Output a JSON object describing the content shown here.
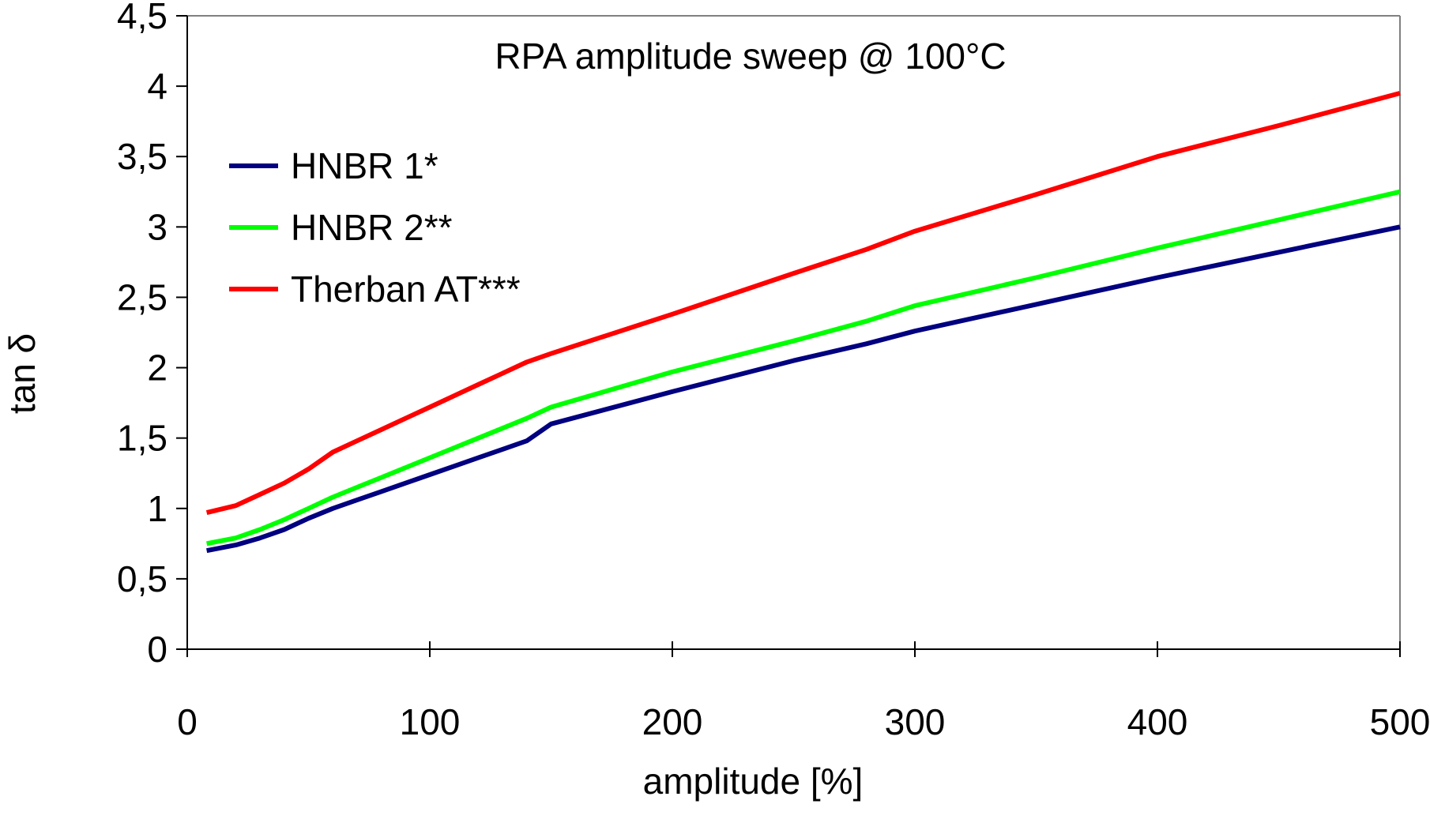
{
  "chart_data": {
    "type": "line",
    "title": "RPA amplitude sweep @ 100°C",
    "xlabel": "amplitude [%]",
    "ylabel": "tan δ",
    "xlim": [
      0,
      500
    ],
    "ylim": [
      0,
      4.5
    ],
    "x_ticks": [
      0,
      100,
      200,
      300,
      400,
      500
    ],
    "x_tick_labels": [
      "0",
      "100",
      "200",
      "300",
      "400",
      "500"
    ],
    "y_ticks": [
      0,
      0.5,
      1,
      1.5,
      2,
      2.5,
      3,
      3.5,
      4,
      4.5
    ],
    "y_tick_labels": [
      "0",
      "0,5",
      "1",
      "1,5",
      "2",
      "2,5",
      "3",
      "3,5",
      "4",
      "4,5"
    ],
    "grid": false,
    "legend_position": "top-left",
    "series": [
      {
        "name": "HNBR 1*",
        "color": "#000080",
        "x": [
          8,
          20,
          30,
          40,
          50,
          60,
          70,
          80,
          90,
          100,
          110,
          120,
          130,
          140,
          150,
          200,
          250,
          280,
          300,
          350,
          400,
          450,
          500
        ],
        "values": [
          0.7,
          0.74,
          0.79,
          0.85,
          0.93,
          1.0,
          1.06,
          1.12,
          1.18,
          1.24,
          1.3,
          1.36,
          1.42,
          1.48,
          1.6,
          1.83,
          2.05,
          2.17,
          2.26,
          2.45,
          2.64,
          2.82,
          3.0
        ]
      },
      {
        "name": "HNBR 2**",
        "color": "#00ff00",
        "x": [
          8,
          20,
          30,
          40,
          50,
          60,
          70,
          80,
          90,
          100,
          110,
          120,
          130,
          140,
          150,
          200,
          250,
          280,
          300,
          350,
          400,
          450,
          500
        ],
        "values": [
          0.75,
          0.79,
          0.85,
          0.92,
          1.0,
          1.08,
          1.15,
          1.22,
          1.29,
          1.36,
          1.43,
          1.5,
          1.57,
          1.64,
          1.72,
          1.97,
          2.19,
          2.33,
          2.44,
          2.64,
          2.85,
          3.05,
          3.25
        ]
      },
      {
        "name": "Therban AT***",
        "color": "#ff0000",
        "x": [
          8,
          20,
          30,
          40,
          50,
          60,
          70,
          80,
          90,
          100,
          110,
          120,
          130,
          140,
          150,
          200,
          250,
          280,
          300,
          350,
          400,
          450,
          500
        ],
        "values": [
          0.97,
          1.02,
          1.1,
          1.18,
          1.28,
          1.4,
          1.48,
          1.56,
          1.64,
          1.72,
          1.8,
          1.88,
          1.96,
          2.04,
          2.1,
          2.38,
          2.67,
          2.84,
          2.97,
          3.23,
          3.5,
          3.72,
          3.95
        ]
      }
    ]
  }
}
